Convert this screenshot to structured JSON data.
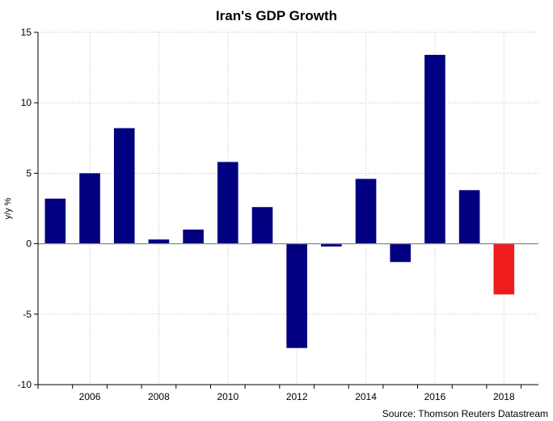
{
  "chart_data": {
    "type": "bar",
    "title": "Iran's GDP Growth",
    "ylabel": "y/y %",
    "xlabel": "",
    "source": "Source: Thomson Reuters Datastream",
    "ylim": [
      -10,
      15
    ],
    "xlim": [
      2005,
      2019.5
    ],
    "yticks": [
      15,
      10,
      5,
      0,
      -5,
      -10
    ],
    "xticks": [
      "2006",
      "2008",
      "2010",
      "2012",
      "2014",
      "2016",
      "2018"
    ],
    "grid": true,
    "legend": "none",
    "colors": {
      "default": "#000080",
      "forecast": "#ee1c1c"
    },
    "x": [
      2005,
      2006,
      2007,
      2008,
      2009,
      2010,
      2011,
      2012,
      2013,
      2014,
      2015,
      2016,
      2017,
      2018
    ],
    "values": [
      3.2,
      5.0,
      8.2,
      0.3,
      1.0,
      5.8,
      2.6,
      -7.4,
      -0.2,
      4.6,
      -1.3,
      13.4,
      3.8,
      -3.6
    ],
    "highlight_index": 13
  }
}
